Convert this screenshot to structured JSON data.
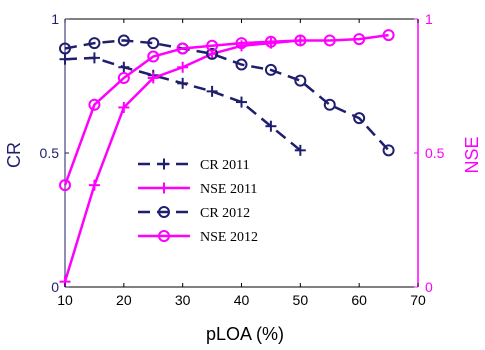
{
  "chart_data": {
    "type": "line",
    "xlabel": "pLOA (%)",
    "ylabel_left": "CR",
    "ylabel_right": "NSE",
    "xlim": [
      10,
      70
    ],
    "ylim_left": [
      0,
      1
    ],
    "ylim_right": [
      0,
      1
    ],
    "x_ticks": [
      "10",
      "20",
      "30",
      "40",
      "50",
      "60",
      "70"
    ],
    "y_ticks_left": [
      "0",
      "0.5",
      "1"
    ],
    "y_ticks_right": [
      "0",
      "0.5",
      "1"
    ],
    "grid": false,
    "legend_position": "lower-left",
    "colors": {
      "cr": "#1f1f6e",
      "nse": "#ff00ff",
      "left_axis": "#1f1f6e",
      "right_axis": "#ff00ff"
    },
    "series": [
      {
        "name": "CR 2011",
        "axis": "left",
        "style": "dashed",
        "marker": "plus",
        "x": [
          10,
          15,
          20,
          25,
          30,
          35,
          40,
          45,
          50
        ],
        "y": [
          0.85,
          0.855,
          0.82,
          0.79,
          0.76,
          0.73,
          0.69,
          0.6,
          0.51
        ]
      },
      {
        "name": "NSE 2011",
        "axis": "right",
        "style": "solid",
        "marker": "plus",
        "x": [
          10,
          15,
          20,
          25,
          30,
          35,
          40,
          45,
          50
        ],
        "y": [
          0.02,
          0.38,
          0.67,
          0.78,
          0.82,
          0.87,
          0.9,
          0.91,
          0.92
        ]
      },
      {
        "name": "CR 2012",
        "axis": "left",
        "style": "dashed",
        "marker": "circle",
        "x": [
          10,
          15,
          20,
          25,
          30,
          35,
          40,
          45,
          50,
          55,
          60,
          65
        ],
        "y": [
          0.89,
          0.91,
          0.92,
          0.91,
          0.89,
          0.87,
          0.83,
          0.81,
          0.77,
          0.68,
          0.63,
          0.51
        ]
      },
      {
        "name": "NSE 2012",
        "axis": "right",
        "style": "solid",
        "marker": "circle",
        "x": [
          10,
          15,
          20,
          25,
          30,
          35,
          40,
          45,
          50,
          55,
          60,
          65
        ],
        "y": [
          0.38,
          0.68,
          0.78,
          0.86,
          0.89,
          0.9,
          0.91,
          0.915,
          0.92,
          0.92,
          0.925,
          0.94
        ]
      }
    ]
  }
}
